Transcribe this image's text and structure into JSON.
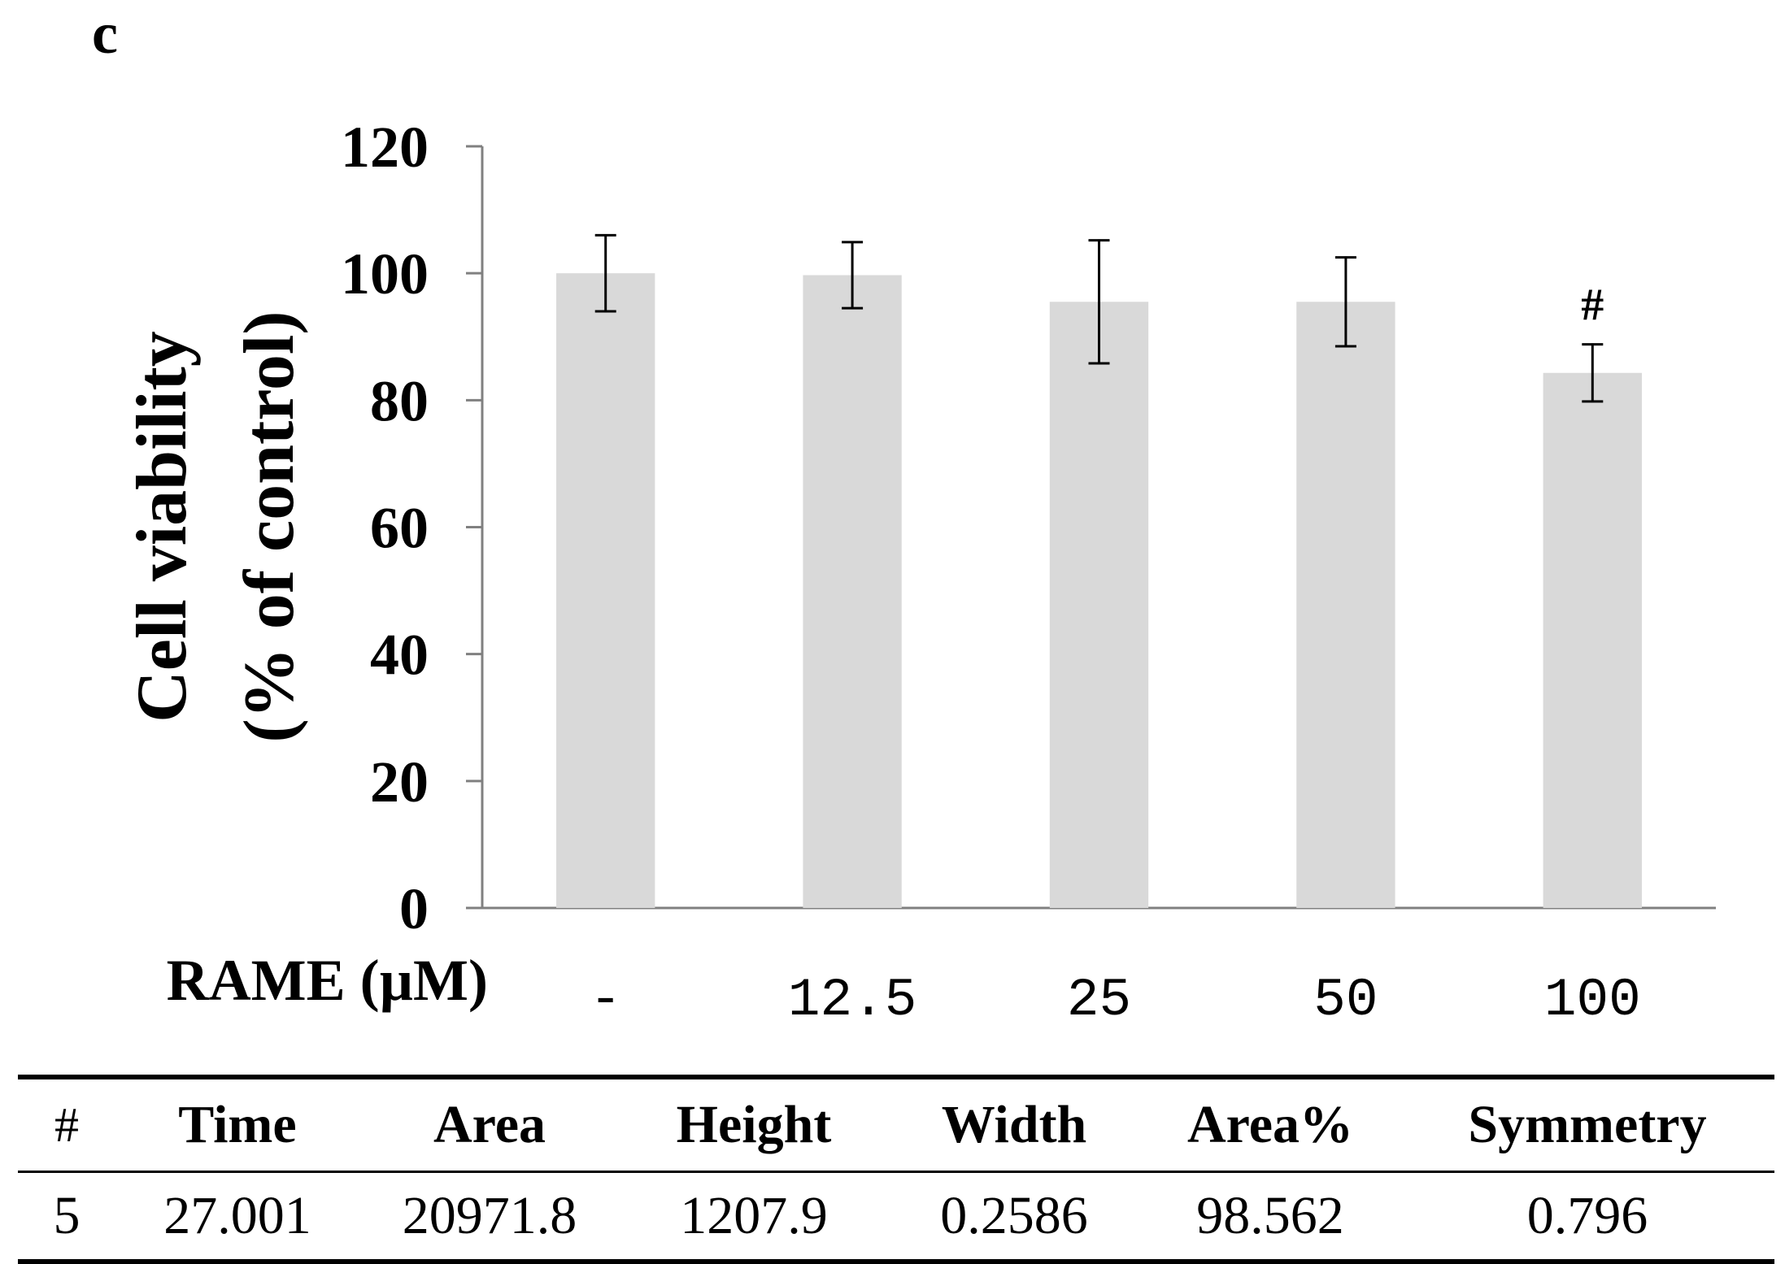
{
  "panel_label": "c",
  "colors": {
    "bar": "#d9d9d9",
    "axis": "#808080",
    "error": "#000000"
  },
  "chart_data": {
    "type": "bar",
    "title": "",
    "xlabel": "RAME (µM)",
    "ylabel_line1": "Cell viability",
    "ylabel_line2": "(% of control)",
    "ylim": [
      0,
      120
    ],
    "yticks": [
      0,
      20,
      40,
      60,
      80,
      100,
      120
    ],
    "categories": [
      "-",
      "12.5",
      "25",
      "50",
      "100"
    ],
    "values": [
      100,
      99.7,
      95.5,
      95.5,
      84.3
    ],
    "errors": [
      6,
      5.2,
      9.7,
      7,
      4.5
    ],
    "annotations": [
      "",
      "",
      "",
      "",
      "#"
    ],
    "grid": false
  },
  "table": {
    "headers": [
      "#",
      "Time",
      "Area",
      "Height",
      "Width",
      "Area%",
      "Symmetry"
    ],
    "rows": [
      [
        "5",
        "27.001",
        "20971.8",
        "1207.9",
        "0.2586",
        "98.562",
        "0.796"
      ]
    ]
  }
}
